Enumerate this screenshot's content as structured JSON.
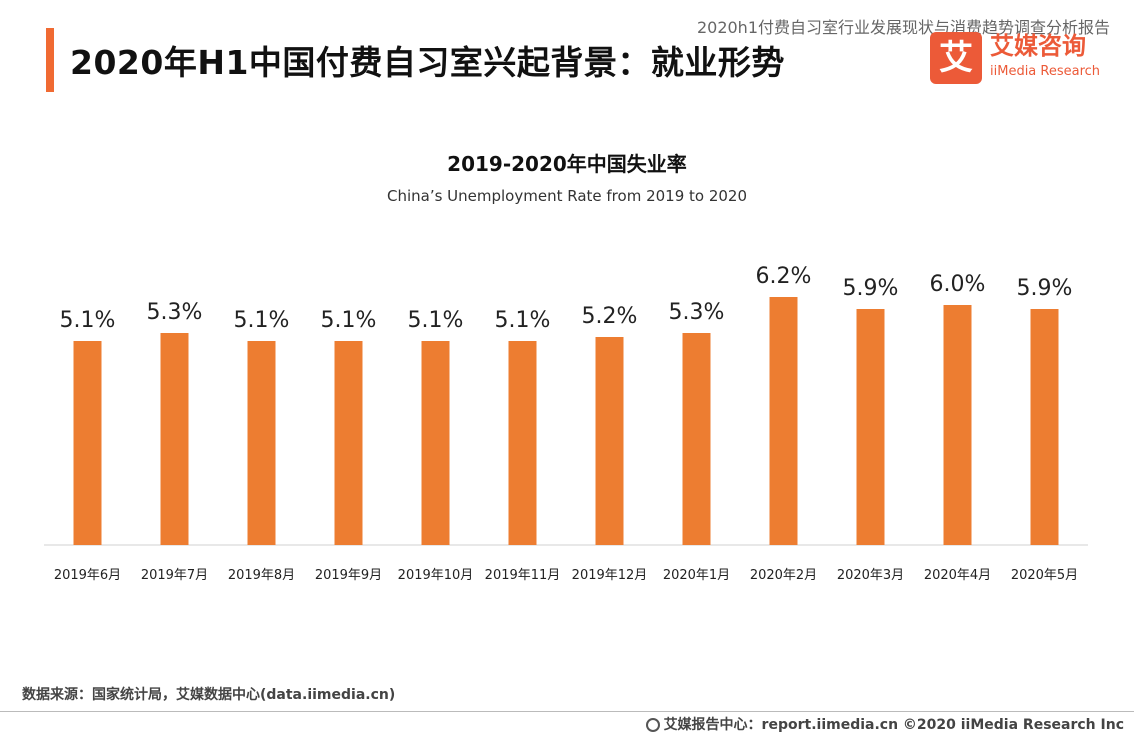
{
  "header": {
    "report_title": "2020h1付费自习室行业发展现状与消费趋势调查分析报告",
    "page_title": "2020年H1中国付费自习室兴起背景：就业形势",
    "logo_mark": "艾",
    "logo_cn": "艾媒咨询",
    "logo_en": "iiMedia Research"
  },
  "chart_data": {
    "type": "bar",
    "title": "2019-2020年中国失业率",
    "subtitle": "China’s Unemployment Rate from 2019 to 2020",
    "categories": [
      "2019年6月",
      "2019年7月",
      "2019年8月",
      "2019年9月",
      "2019年10月",
      "2019年11月",
      "2019年12月",
      "2020年1月",
      "2020年2月",
      "2020年3月",
      "2020年4月",
      "2020年5月"
    ],
    "values": [
      5.1,
      5.3,
      5.1,
      5.1,
      5.1,
      5.1,
      5.2,
      5.3,
      6.2,
      5.9,
      6.0,
      5.9
    ],
    "value_labels": [
      "5.1%",
      "5.3%",
      "5.1%",
      "5.1%",
      "5.1%",
      "5.1%",
      "5.2%",
      "5.3%",
      "6.2%",
      "5.9%",
      "6.0%",
      "5.9%"
    ],
    "bar_color": "#ed7d31",
    "grid": false,
    "legend": "none"
  },
  "footer": {
    "source": "数据来源：国家统计局，艾媒数据中心(data.iimedia.cn)",
    "credit": "艾媒报告中心：report.iimedia.cn  ©2020  iiMedia Research  Inc"
  }
}
